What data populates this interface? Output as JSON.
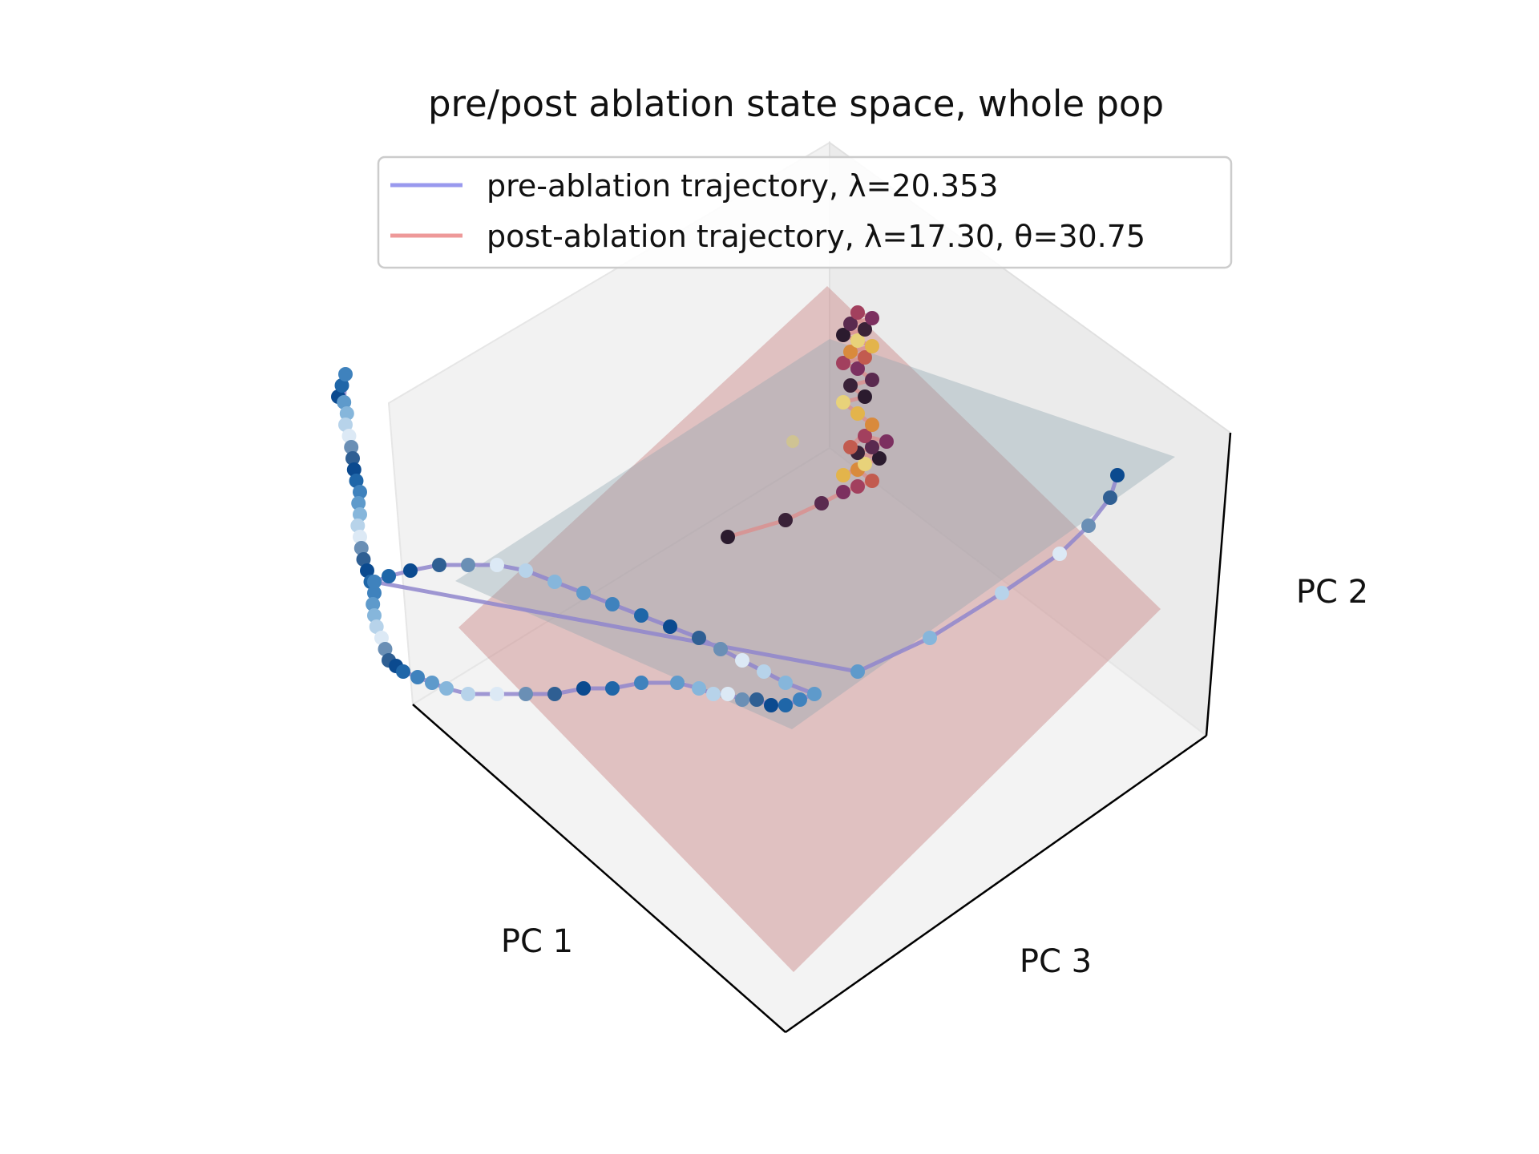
{
  "chart_data": {
    "type": "scatter",
    "projection": "3d",
    "title": "pre/post ablation state space, whole pop",
    "axis_labels": {
      "x": "PC 1",
      "y": "PC 2",
      "z": "PC 3"
    },
    "grid": false,
    "legend_placement": "upper-center",
    "legend": [
      {
        "label": "pre-ablation trajectory, λ=20.353",
        "color": "#9999ee"
      },
      {
        "label": "post-ablation trajectory, λ=17.30, θ=30.75",
        "color": "#ee9999"
      }
    ],
    "planes": [
      {
        "name": "pre-ablation plane",
        "color": "#a9bcc2"
      },
      {
        "name": "post-ablation plane",
        "color": "#d6a4a4"
      }
    ],
    "colors": {
      "pre_line": "#8f86cc",
      "post_line": "#d9908f",
      "pre_points": "Blues colormap",
      "post_points": "inferno-like colormap"
    },
    "series": [
      {
        "id": "pre",
        "values": [
          [
            0.38,
            0.85
          ],
          [
            0.385,
            0.87
          ],
          [
            0.39,
            0.89
          ],
          [
            0.388,
            0.84
          ],
          [
            0.392,
            0.82
          ],
          [
            0.39,
            0.8
          ],
          [
            0.395,
            0.78
          ],
          [
            0.398,
            0.76
          ],
          [
            0.4,
            0.74
          ],
          [
            0.402,
            0.72
          ],
          [
            0.405,
            0.7
          ],
          [
            0.41,
            0.68
          ],
          [
            0.408,
            0.66
          ],
          [
            0.41,
            0.64
          ],
          [
            0.407,
            0.62
          ],
          [
            0.41,
            0.6
          ],
          [
            0.412,
            0.58
          ],
          [
            0.415,
            0.56
          ],
          [
            0.42,
            0.54
          ],
          [
            0.425,
            0.52
          ],
          [
            0.43,
            0.5
          ],
          [
            0.428,
            0.48
          ],
          [
            0.43,
            0.46
          ],
          [
            0.433,
            0.44
          ],
          [
            0.44,
            0.42
          ],
          [
            0.445,
            0.4
          ],
          [
            0.45,
            0.38
          ],
          [
            0.46,
            0.37
          ],
          [
            0.47,
            0.36
          ],
          [
            0.49,
            0.35
          ],
          [
            0.51,
            0.34
          ],
          [
            0.53,
            0.33
          ],
          [
            0.56,
            0.32
          ],
          [
            0.6,
            0.32
          ],
          [
            0.64,
            0.32
          ],
          [
            0.68,
            0.32
          ],
          [
            0.72,
            0.33
          ],
          [
            0.76,
            0.33
          ],
          [
            0.8,
            0.34
          ],
          [
            0.85,
            0.34
          ],
          [
            0.88,
            0.33
          ],
          [
            0.9,
            0.32
          ],
          [
            0.92,
            0.32
          ],
          [
            0.94,
            0.31
          ],
          [
            0.96,
            0.31
          ],
          [
            0.98,
            0.3
          ],
          [
            1.0,
            0.3
          ],
          [
            1.02,
            0.31
          ],
          [
            1.04,
            0.32
          ],
          [
            1.0,
            0.34
          ],
          [
            0.97,
            0.36
          ],
          [
            0.94,
            0.38
          ],
          [
            0.91,
            0.4
          ],
          [
            0.88,
            0.42
          ],
          [
            0.84,
            0.44
          ],
          [
            0.8,
            0.46
          ],
          [
            0.76,
            0.48
          ],
          [
            0.72,
            0.5
          ],
          [
            0.68,
            0.52
          ],
          [
            0.64,
            0.54
          ],
          [
            0.6,
            0.55
          ],
          [
            0.56,
            0.55
          ],
          [
            0.52,
            0.55
          ],
          [
            0.48,
            0.54
          ],
          [
            0.45,
            0.53
          ],
          [
            0.43,
            0.52
          ],
          [
            1.1,
            0.36
          ],
          [
            1.2,
            0.42
          ],
          [
            1.3,
            0.5
          ],
          [
            1.38,
            0.57
          ],
          [
            1.42,
            0.62
          ],
          [
            1.45,
            0.67
          ],
          [
            1.46,
            0.71
          ]
        ]
      },
      {
        "id": "post",
        "values": [
          [
            0.92,
            0.6
          ],
          [
            1.0,
            0.63
          ],
          [
            1.05,
            0.66
          ],
          [
            1.08,
            0.68
          ],
          [
            1.1,
            0.69
          ],
          [
            1.12,
            0.7
          ],
          [
            1.1,
            0.72
          ],
          [
            1.08,
            0.71
          ],
          [
            1.11,
            0.73
          ],
          [
            1.13,
            0.74
          ],
          [
            1.1,
            0.75
          ],
          [
            1.12,
            0.76
          ],
          [
            1.14,
            0.77
          ],
          [
            1.11,
            0.78
          ],
          [
            1.09,
            0.76
          ],
          [
            1.12,
            0.8
          ],
          [
            1.1,
            0.82
          ],
          [
            1.08,
            0.84
          ],
          [
            1.11,
            0.85
          ],
          [
            1.09,
            0.87
          ],
          [
            1.12,
            0.88
          ],
          [
            1.1,
            0.9
          ],
          [
            1.08,
            0.91
          ],
          [
            1.11,
            0.92
          ],
          [
            1.09,
            0.93
          ],
          [
            1.12,
            0.94
          ],
          [
            1.1,
            0.95
          ],
          [
            1.08,
            0.96
          ],
          [
            1.11,
            0.97
          ],
          [
            1.09,
            0.98
          ],
          [
            1.12,
            0.99
          ],
          [
            1.1,
            1.0
          ]
        ]
      }
    ],
    "isolated_points": [
      [
        1.01,
        0.77
      ]
    ]
  }
}
